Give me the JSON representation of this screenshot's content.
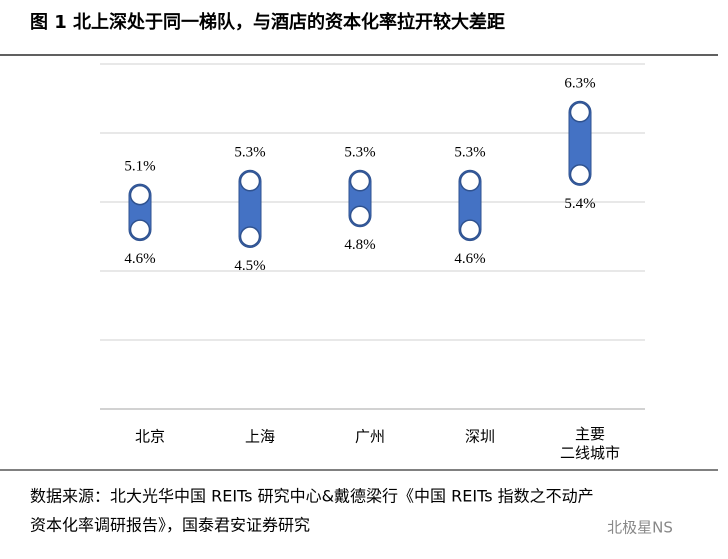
{
  "header": {
    "title": "图 1 北上深处于同一梯队，与酒店的资本化率拉开较大差距"
  },
  "chart_data": {
    "type": "range",
    "categories": [
      "北京",
      "上海",
      "广州",
      "深圳",
      "主要\n二线城市"
    ],
    "series": [
      {
        "color": "#4472c4",
        "values": [
          5.1,
          5.3,
          5.3,
          5.3,
          6.3
        ],
        "value_labels": [
          "5.1%",
          "5.3%",
          "5.3%",
          "5.3%",
          "6.3%"
        ]
      },
      {
        "color": "#4472c4",
        "values": [
          4.6,
          4.5,
          4.8,
          4.6,
          5.4
        ],
        "value_labels": [
          "4.6%",
          "4.5%",
          "4.8%",
          "4.6%",
          "5.4%"
        ]
      }
    ],
    "ylim": [
      2,
      7
    ],
    "yticks": [
      2,
      3,
      4,
      5,
      6,
      7
    ],
    "grid": true
  },
  "source": [
    "数据来源：北大光华中国 REITs 研究中心&戴德梁行《中国 REITs 指数之不动产",
    "资本化率调研报告》，国泰君安证券研究"
  ],
  "watermark": "北极星NS"
}
